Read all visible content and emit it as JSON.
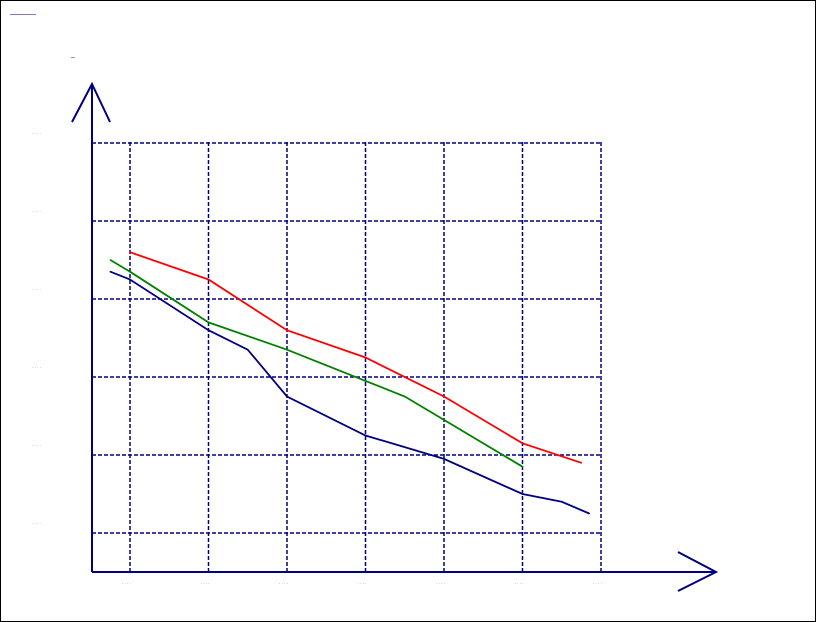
{
  "chart_data": {
    "type": "line",
    "title": "",
    "xlabel": "",
    "ylabel": "",
    "xlim": [
      0,
      6.5
    ],
    "ylim": [
      0,
      5.5
    ],
    "grid": true,
    "x_ticks": [
      0,
      1,
      2,
      3,
      4,
      5,
      6
    ],
    "y_ticks": [
      0,
      1,
      2,
      3,
      4,
      5
    ],
    "series": [
      {
        "color": "#ff0000",
        "x": [
          0,
          1,
          2,
          3,
          4,
          5,
          5.75
        ],
        "y": [
          3.6,
          3.25,
          2.6,
          2.25,
          1.75,
          1.15,
          0.9
        ]
      },
      {
        "color": "#008000",
        "x": [
          -0.25,
          0,
          1,
          2,
          3,
          3.5,
          4,
          5
        ],
        "y": [
          3.5,
          3.35,
          2.7,
          2.35,
          1.95,
          1.75,
          1.45,
          0.85
        ]
      },
      {
        "color": "#000080",
        "x": [
          -0.25,
          0,
          1,
          1.5,
          2,
          3,
          4,
          5,
          5.5,
          5.85
        ],
        "y": [
          3.35,
          3.25,
          2.6,
          2.35,
          1.75,
          1.25,
          0.95,
          0.5,
          0.4,
          0.25
        ]
      }
    ]
  }
}
